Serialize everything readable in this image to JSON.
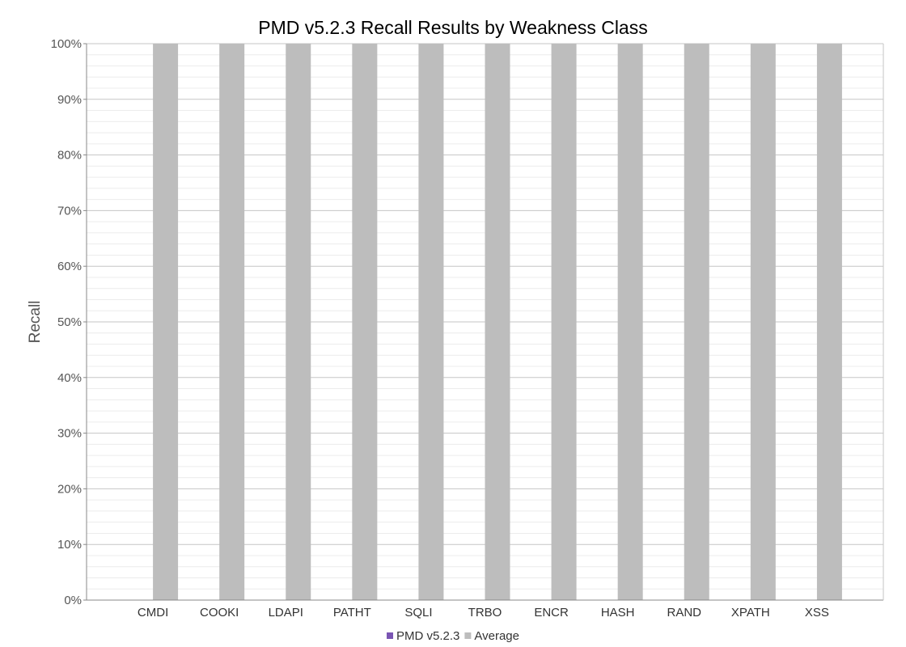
{
  "chart_data": {
    "type": "bar",
    "title": "PMD v5.2.3 Recall Results by Weakness Class",
    "xlabel": "",
    "ylabel": "Recall",
    "categories": [
      "CMDI",
      "COOKI",
      "LDAPI",
      "PATHT",
      "SQLI",
      "TRBO",
      "ENCR",
      "HASH",
      "RAND",
      "XPATH",
      "XSS"
    ],
    "series": [
      {
        "name": "PMD v5.2.3",
        "color": "#7a55b3",
        "values": [
          0,
          0,
          0,
          0,
          0,
          0,
          0,
          0,
          0,
          0,
          0
        ]
      },
      {
        "name": "Average",
        "color": "#bdbdbd",
        "values": [
          100,
          100,
          100,
          100,
          100,
          100,
          100,
          100,
          100,
          100,
          100
        ]
      }
    ],
    "ylim": [
      0,
      100
    ],
    "y_ticks": [
      "0%",
      "10%",
      "20%",
      "30%",
      "40%",
      "50%",
      "60%",
      "70%",
      "80%",
      "90%",
      "100%"
    ],
    "grid": true,
    "legend_position": "bottom-center"
  }
}
